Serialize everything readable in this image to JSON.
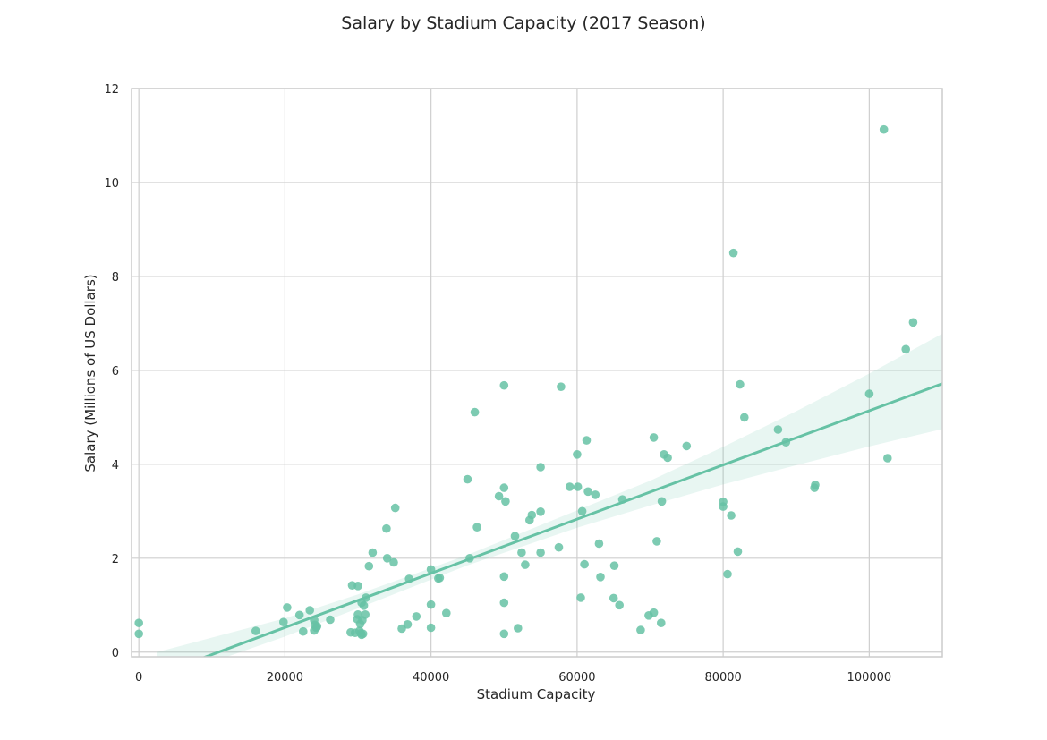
{
  "chart_data": {
    "type": "scatter",
    "title": "Salary by Stadium Capacity (2017 Season)",
    "xlabel": "Stadium Capacity",
    "ylabel": "Salary (Millions of US Dollars)",
    "xlim": [
      -1000,
      110000
    ],
    "ylim": [
      -0.1,
      12
    ],
    "x_ticks": [
      0,
      20000,
      40000,
      60000,
      80000,
      100000
    ],
    "x_tick_labels": [
      "0",
      "20000",
      "40000",
      "60000",
      "80000",
      "100000"
    ],
    "y_ticks": [
      0,
      2,
      4,
      6,
      8,
      10,
      12
    ],
    "y_tick_labels": [
      "0",
      "2",
      "4",
      "6",
      "8",
      "10",
      "12"
    ],
    "grid": true,
    "color": "#66c2a5",
    "regression": {
      "slope": 5.77e-05,
      "intercept": -0.63,
      "ci_band": [
        {
          "x": 2500,
          "lower": -0.62,
          "upper": 0.0
        },
        {
          "x": 20000,
          "lower": 0.33,
          "upper": 0.72
        },
        {
          "x": 30000,
          "lower": 0.93,
          "upper": 1.23
        },
        {
          "x": 45000,
          "lower": 1.85,
          "upper": 2.07
        },
        {
          "x": 60000,
          "lower": 2.65,
          "upper": 3.02
        },
        {
          "x": 70000,
          "lower": 3.12,
          "upper": 3.65
        },
        {
          "x": 80000,
          "lower": 3.57,
          "upper": 4.37
        },
        {
          "x": 90000,
          "lower": 3.98,
          "upper": 5.13
        },
        {
          "x": 100000,
          "lower": 4.38,
          "upper": 5.93
        },
        {
          "x": 110000,
          "lower": 4.75,
          "upper": 6.78
        }
      ]
    },
    "points": [
      {
        "x": 0,
        "y": 0.62
      },
      {
        "x": 0,
        "y": 0.39
      },
      {
        "x": 16000,
        "y": 0.45
      },
      {
        "x": 19800,
        "y": 0.64
      },
      {
        "x": 20300,
        "y": 0.95
      },
      {
        "x": 22000,
        "y": 0.79
      },
      {
        "x": 22500,
        "y": 0.44
      },
      {
        "x": 23400,
        "y": 0.89
      },
      {
        "x": 24000,
        "y": 0.68
      },
      {
        "x": 24000,
        "y": 0.46
      },
      {
        "x": 24100,
        "y": 0.58
      },
      {
        "x": 24300,
        "y": 0.52
      },
      {
        "x": 24400,
        "y": 0.55
      },
      {
        "x": 26200,
        "y": 0.69
      },
      {
        "x": 29000,
        "y": 0.42
      },
      {
        "x": 29200,
        "y": 1.42
      },
      {
        "x": 29600,
        "y": 0.41
      },
      {
        "x": 29900,
        "y": 0.7
      },
      {
        "x": 30000,
        "y": 0.8
      },
      {
        "x": 30000,
        "y": 1.41
      },
      {
        "x": 30200,
        "y": 0.45
      },
      {
        "x": 30300,
        "y": 0.6
      },
      {
        "x": 30400,
        "y": 0.4
      },
      {
        "x": 30500,
        "y": 0.37
      },
      {
        "x": 30500,
        "y": 1.05
      },
      {
        "x": 30600,
        "y": 0.68
      },
      {
        "x": 30700,
        "y": 0.39
      },
      {
        "x": 30800,
        "y": 0.99
      },
      {
        "x": 31000,
        "y": 0.8
      },
      {
        "x": 31100,
        "y": 1.16
      },
      {
        "x": 31500,
        "y": 1.83
      },
      {
        "x": 32000,
        "y": 2.12
      },
      {
        "x": 33900,
        "y": 2.63
      },
      {
        "x": 34000,
        "y": 2.0
      },
      {
        "x": 34900,
        "y": 1.91
      },
      {
        "x": 35100,
        "y": 3.07
      },
      {
        "x": 36000,
        "y": 0.5
      },
      {
        "x": 36800,
        "y": 0.59
      },
      {
        "x": 37000,
        "y": 1.56
      },
      {
        "x": 38000,
        "y": 0.76
      },
      {
        "x": 40000,
        "y": 1.76
      },
      {
        "x": 40000,
        "y": 1.01
      },
      {
        "x": 40000,
        "y": 0.52
      },
      {
        "x": 41000,
        "y": 1.57
      },
      {
        "x": 41200,
        "y": 1.58
      },
      {
        "x": 42100,
        "y": 0.83
      },
      {
        "x": 45000,
        "y": 3.68
      },
      {
        "x": 45300,
        "y": 2.0
      },
      {
        "x": 46000,
        "y": 5.11
      },
      {
        "x": 46300,
        "y": 2.66
      },
      {
        "x": 49300,
        "y": 3.32
      },
      {
        "x": 50000,
        "y": 3.5
      },
      {
        "x": 50000,
        "y": 5.68
      },
      {
        "x": 50000,
        "y": 1.61
      },
      {
        "x": 50000,
        "y": 1.05
      },
      {
        "x": 50000,
        "y": 0.39
      },
      {
        "x": 50200,
        "y": 3.21
      },
      {
        "x": 51500,
        "y": 2.47
      },
      {
        "x": 51900,
        "y": 0.51
      },
      {
        "x": 52400,
        "y": 2.12
      },
      {
        "x": 52900,
        "y": 1.86
      },
      {
        "x": 53500,
        "y": 2.81
      },
      {
        "x": 53800,
        "y": 2.92
      },
      {
        "x": 55000,
        "y": 3.94
      },
      {
        "x": 55000,
        "y": 2.99
      },
      {
        "x": 55000,
        "y": 2.12
      },
      {
        "x": 57500,
        "y": 2.23
      },
      {
        "x": 57800,
        "y": 5.65
      },
      {
        "x": 59000,
        "y": 3.52
      },
      {
        "x": 60000,
        "y": 4.21
      },
      {
        "x": 60100,
        "y": 3.52
      },
      {
        "x": 60500,
        "y": 1.16
      },
      {
        "x": 60700,
        "y": 3.0
      },
      {
        "x": 61000,
        "y": 1.87
      },
      {
        "x": 61300,
        "y": 4.51
      },
      {
        "x": 61500,
        "y": 3.42
      },
      {
        "x": 62500,
        "y": 3.35
      },
      {
        "x": 63000,
        "y": 2.31
      },
      {
        "x": 63200,
        "y": 1.6
      },
      {
        "x": 65000,
        "y": 1.15
      },
      {
        "x": 65100,
        "y": 1.84
      },
      {
        "x": 65800,
        "y": 1.0
      },
      {
        "x": 66200,
        "y": 3.25
      },
      {
        "x": 68700,
        "y": 0.47
      },
      {
        "x": 69800,
        "y": 0.78
      },
      {
        "x": 70500,
        "y": 0.84
      },
      {
        "x": 70500,
        "y": 4.57
      },
      {
        "x": 70900,
        "y": 2.36
      },
      {
        "x": 71500,
        "y": 0.62
      },
      {
        "x": 71600,
        "y": 3.21
      },
      {
        "x": 71900,
        "y": 4.21
      },
      {
        "x": 72400,
        "y": 4.14
      },
      {
        "x": 75000,
        "y": 4.39
      },
      {
        "x": 80000,
        "y": 3.2
      },
      {
        "x": 80000,
        "y": 3.1
      },
      {
        "x": 80600,
        "y": 1.66
      },
      {
        "x": 81100,
        "y": 2.91
      },
      {
        "x": 81400,
        "y": 8.5
      },
      {
        "x": 82000,
        "y": 2.14
      },
      {
        "x": 82300,
        "y": 5.7
      },
      {
        "x": 82900,
        "y": 5.0
      },
      {
        "x": 87500,
        "y": 4.74
      },
      {
        "x": 88600,
        "y": 4.47
      },
      {
        "x": 92500,
        "y": 3.5
      },
      {
        "x": 92600,
        "y": 3.56
      },
      {
        "x": 100000,
        "y": 5.5
      },
      {
        "x": 102000,
        "y": 11.13
      },
      {
        "x": 102500,
        "y": 4.13
      },
      {
        "x": 105000,
        "y": 6.45
      },
      {
        "x": 106000,
        "y": 7.02
      }
    ]
  }
}
